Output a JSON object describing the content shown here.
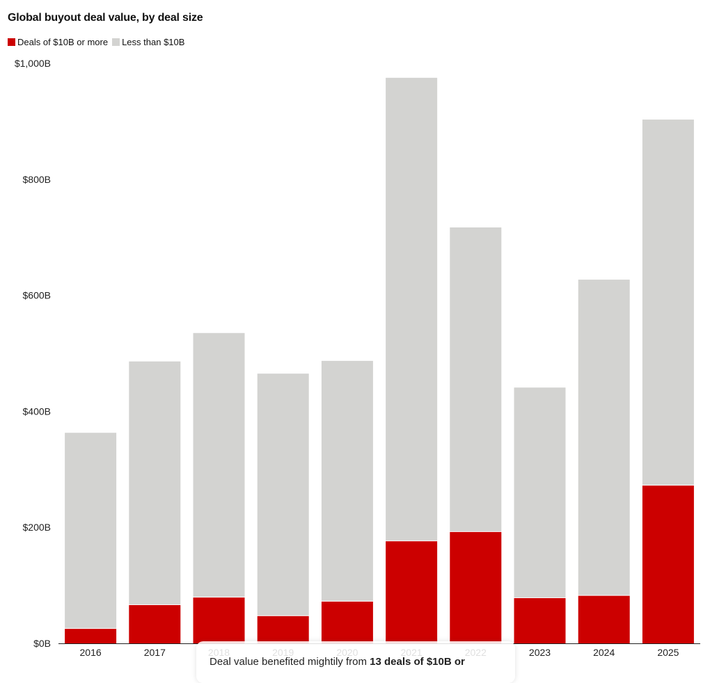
{
  "chart_data": {
    "type": "bar",
    "stacked": true,
    "title": "Global buyout deal value, by deal size",
    "xlabel": "",
    "ylabel": "",
    "ylim": [
      0,
      1000
    ],
    "yticks": [
      0,
      200,
      400,
      600,
      800,
      1000
    ],
    "ytick_labels": [
      "$0B",
      "$200B",
      "$400B",
      "$600B",
      "$800B",
      "$1,000B"
    ],
    "categories": [
      "2016",
      "2017",
      "2018",
      "2019",
      "2020",
      "2021",
      "2022",
      "2023",
      "2024",
      "2025"
    ],
    "series": [
      {
        "name": "Deals of $10B or more",
        "color": "#cc0000",
        "values": [
          25,
          66,
          79,
          47,
          72,
          176,
          192,
          78,
          82,
          272
        ]
      },
      {
        "name": "Less than $10B",
        "color": "#d3d3d1",
        "values": [
          338,
          420,
          456,
          418,
          415,
          799,
          525,
          363,
          545,
          631
        ]
      }
    ],
    "grid": false,
    "legend": "top-left"
  },
  "tooltip": {
    "text_before": "Deal value benefited mightily from ",
    "text_bold": "13 deals of $10B or"
  }
}
